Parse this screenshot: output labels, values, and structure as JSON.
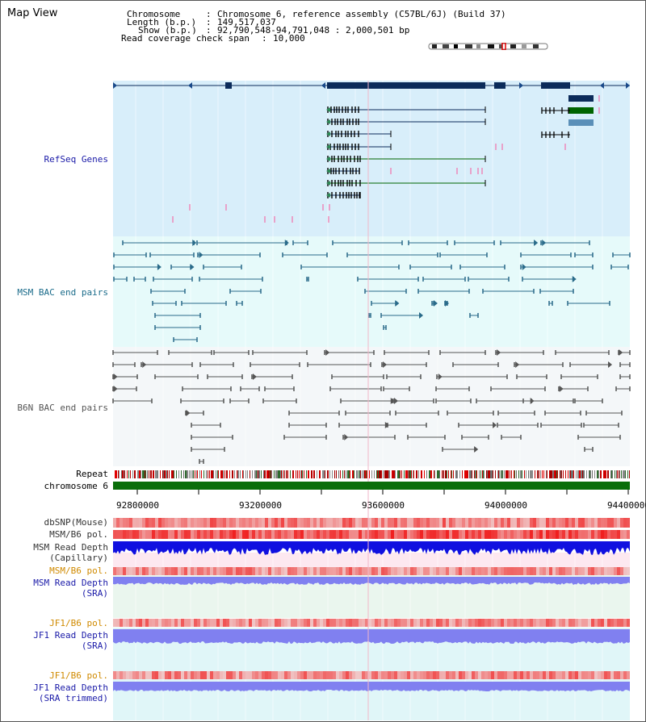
{
  "title": "Map View",
  "info": {
    "chromosome_label": "Chromosome",
    "chromosome_value": "Chromosome 6, reference assembly (C57BL/6J) (Build 37)",
    "length_label": "Length (b.p.)",
    "length_value": "149,517,037",
    "show_label": "Show (b.p.)",
    "show_value": "92,790,548-94,791,048 : 2,000,501 bp",
    "span_label": "Read coverage check span",
    "span_value": "10,000"
  },
  "tracks": {
    "refseq": "RefSeq Genes",
    "msm_bac": "MSM BAC end pairs",
    "b6n_bac": "B6N BAC end pairs",
    "repeat": "Repeat",
    "chromosome": "chromosome 6",
    "dbsnp": "dbSNP(Mouse)",
    "msm_b6_pol_1": "MSM/B6 pol.",
    "msm_depth_cap_1": "MSM Read Depth",
    "msm_depth_cap_2": "(Capillary)",
    "msm_b6_pol_2": "MSM/B6 pol.",
    "msm_depth_sra_1": "MSM Read Depth",
    "msm_depth_sra_2": "(SRA)",
    "jf1_b6_pol_1": "JF1/B6 pol.",
    "jf1_depth_sra_1": "JF1 Read Depth",
    "jf1_depth_sra_2": "(SRA)",
    "jf1_b6_pol_2": "JF1/B6 pol.",
    "jf1_depth_trim_1": "JF1 Read Depth",
    "jf1_depth_trim_2": "(SRA trimmed)"
  },
  "axis_ticks": [
    "92800000",
    "93200000",
    "93600000",
    "94000000",
    "94400000"
  ],
  "colors": {
    "refseq_bg": "#d8eefa",
    "msm_bac_bg": "#e6fafa",
    "b6n_bac_bg": "#f4f7f9",
    "msm_bac_line": "#2a6b8a",
    "b6n_bac_line": "#555555",
    "gene_dark": "#0b2b5a",
    "gene_green": "#006400",
    "gene_steel": "#5a8fb8",
    "chromosome_bar": "#0a6e0a",
    "label_blue": "#1a1aa8",
    "label_orange": "#d08a00",
    "label_black": "#000000",
    "depth_blue": "#1010e0",
    "depth_lavender": "#8080f0",
    "pol_red": "#f06060"
  }
}
